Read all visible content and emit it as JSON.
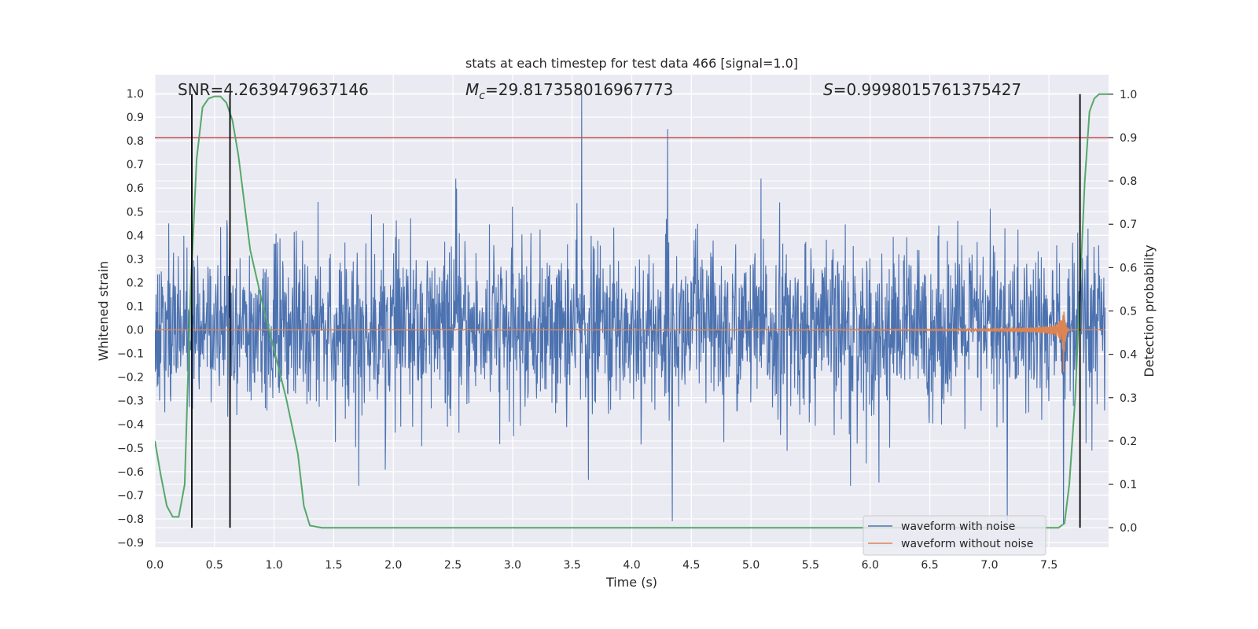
{
  "chart_data": {
    "type": "line",
    "title": "stats at each timestep for test data 466 [signal=1.0]",
    "xlabel": "Time (s)",
    "ylabel": "Whitened strain",
    "y2label": "Detection probability",
    "xlim": [
      0.0,
      8.0
    ],
    "ylim": [
      -0.92,
      1.08
    ],
    "y2lim": [
      -0.045,
      1.045
    ],
    "x_ticks": [
      "0.0",
      "0.5",
      "1.0",
      "1.5",
      "2.0",
      "2.5",
      "3.0",
      "3.5",
      "4.0",
      "4.5",
      "5.0",
      "5.5",
      "6.0",
      "6.5",
      "7.0",
      "7.5"
    ],
    "y_ticks": [
      "1.0",
      "0.9",
      "0.8",
      "0.7",
      "0.6",
      "0.5",
      "0.4",
      "0.3",
      "0.2",
      "0.1",
      "0.0",
      "−0.1",
      "−0.2",
      "−0.3",
      "−0.4",
      "−0.5",
      "−0.6",
      "−0.7",
      "−0.8",
      "−0.9"
    ],
    "y2_ticks": [
      "1.0",
      "0.9",
      "0.8",
      "0.7",
      "0.6",
      "0.5",
      "0.4",
      "0.3",
      "0.2",
      "0.1",
      "0.0"
    ],
    "annotations": {
      "snr": "SNR=4.2639479637146",
      "mc_symbol": "M",
      "mc_sub": "c",
      "mc_value": "=29.817358016967773",
      "s_symbol": "S",
      "s_value": "=0.9998015761375427"
    },
    "series": [
      {
        "name": "waveform with noise",
        "color": "#4c72b0",
        "kind": "noise",
        "envelope": 0.45,
        "spike_max": 1.0,
        "spike_min": -0.81
      },
      {
        "name": "waveform without noise",
        "color": "#dd8452",
        "kind": "chirp",
        "merger_time": 7.62,
        "peak_amplitude": 0.21
      },
      {
        "name": "detection probability",
        "color": "#55a868",
        "axis": "right",
        "points": [
          [
            0.0,
            0.2
          ],
          [
            0.05,
            0.12
          ],
          [
            0.1,
            0.05
          ],
          [
            0.15,
            0.025
          ],
          [
            0.2,
            0.025
          ],
          [
            0.25,
            0.1
          ],
          [
            0.3,
            0.55
          ],
          [
            0.35,
            0.85
          ],
          [
            0.4,
            0.97
          ],
          [
            0.45,
            0.99
          ],
          [
            0.5,
            0.995
          ],
          [
            0.55,
            0.995
          ],
          [
            0.6,
            0.98
          ],
          [
            0.65,
            0.94
          ],
          [
            0.7,
            0.86
          ],
          [
            0.75,
            0.75
          ],
          [
            0.8,
            0.64
          ],
          [
            0.9,
            0.52
          ],
          [
            1.0,
            0.41
          ],
          [
            1.1,
            0.3
          ],
          [
            1.2,
            0.17
          ],
          [
            1.25,
            0.05
          ],
          [
            1.3,
            0.005
          ],
          [
            1.4,
            0.0
          ],
          [
            7.58,
            0.0
          ],
          [
            7.63,
            0.01
          ],
          [
            7.67,
            0.1
          ],
          [
            7.72,
            0.3
          ],
          [
            7.76,
            0.55
          ],
          [
            7.8,
            0.8
          ],
          [
            7.84,
            0.96
          ],
          [
            7.88,
            0.99
          ],
          [
            7.92,
            1.0
          ],
          [
            8.0,
            1.0
          ]
        ]
      }
    ],
    "threshold": {
      "value": 0.9,
      "axis": "right",
      "color": "#c44e52"
    },
    "vlines_x": [
      0.31,
      0.63,
      7.76
    ],
    "vline_color": "#000000",
    "legend_position": "lower-right",
    "background": "#eaeaf2",
    "grid": true
  }
}
